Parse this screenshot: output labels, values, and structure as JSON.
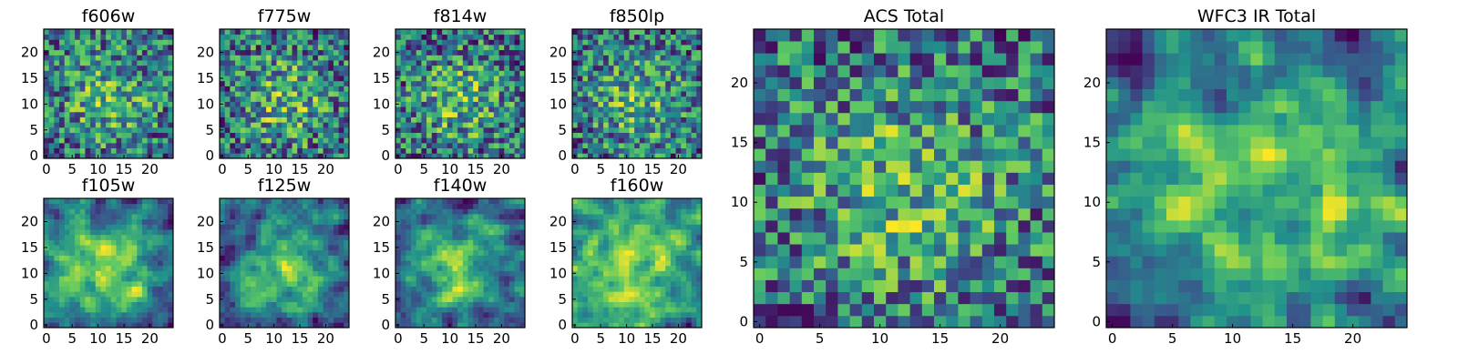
{
  "chart_data": [
    {
      "type": "heatmap",
      "title": "f606w",
      "xlim": [
        0,
        25
      ],
      "ylim": [
        0,
        25
      ],
      "xticks": [
        "0",
        "5",
        "10",
        "15",
        "20"
      ],
      "yticks": [
        "0",
        "5",
        "10",
        "15",
        "20"
      ],
      "seed": 11,
      "smooth": 0,
      "colormap": "viridis"
    },
    {
      "type": "heatmap",
      "title": "f775w",
      "xlim": [
        0,
        25
      ],
      "ylim": [
        0,
        25
      ],
      "xticks": [
        "0",
        "5",
        "10",
        "15",
        "20"
      ],
      "yticks": [
        "0",
        "5",
        "10",
        "15",
        "20"
      ],
      "seed": 23,
      "smooth": 0,
      "colormap": "viridis"
    },
    {
      "type": "heatmap",
      "title": "f814w",
      "xlim": [
        0,
        25
      ],
      "ylim": [
        0,
        25
      ],
      "xticks": [
        "0",
        "5",
        "10",
        "15",
        "20"
      ],
      "yticks": [
        "0",
        "5",
        "10",
        "15",
        "20"
      ],
      "seed": 37,
      "smooth": 0,
      "colormap": "viridis"
    },
    {
      "type": "heatmap",
      "title": "f850lp",
      "xlim": [
        0,
        25
      ],
      "ylim": [
        0,
        25
      ],
      "xticks": [
        "0",
        "5",
        "10",
        "15",
        "20"
      ],
      "yticks": [
        "0",
        "5",
        "10",
        "15",
        "20"
      ],
      "seed": 41,
      "smooth": 0,
      "colormap": "viridis"
    },
    {
      "type": "heatmap",
      "title": "f105w",
      "xlim": [
        0,
        25
      ],
      "ylim": [
        0,
        25
      ],
      "xticks": [
        "0",
        "5",
        "10",
        "15",
        "20"
      ],
      "yticks": [
        "0",
        "5",
        "10",
        "15",
        "20"
      ],
      "seed": 53,
      "smooth": 1,
      "colormap": "viridis"
    },
    {
      "type": "heatmap",
      "title": "f125w",
      "xlim": [
        0,
        25
      ],
      "ylim": [
        0,
        25
      ],
      "xticks": [
        "0",
        "5",
        "10",
        "15",
        "20"
      ],
      "yticks": [
        "0",
        "5",
        "10",
        "15",
        "20"
      ],
      "seed": 67,
      "smooth": 1,
      "colormap": "viridis"
    },
    {
      "type": "heatmap",
      "title": "f140w",
      "xlim": [
        0,
        25
      ],
      "ylim": [
        0,
        25
      ],
      "xticks": [
        "0",
        "5",
        "10",
        "15",
        "20"
      ],
      "yticks": [
        "0",
        "5",
        "10",
        "15",
        "20"
      ],
      "seed": 71,
      "smooth": 1,
      "colormap": "viridis"
    },
    {
      "type": "heatmap",
      "title": "f160w",
      "xlim": [
        0,
        25
      ],
      "ylim": [
        0,
        25
      ],
      "xticks": [
        "0",
        "5",
        "10",
        "15",
        "20"
      ],
      "yticks": [
        "0",
        "5",
        "10",
        "15",
        "20"
      ],
      "seed": 83,
      "smooth": 1,
      "colormap": "viridis"
    },
    {
      "type": "heatmap",
      "title": "ACS Total",
      "xlim": [
        0,
        25
      ],
      "ylim": [
        0,
        25
      ],
      "xticks": [
        "0",
        "5",
        "10",
        "15",
        "20"
      ],
      "yticks": [
        "0",
        "5",
        "10",
        "15",
        "20"
      ],
      "seed": 97,
      "smooth": 0,
      "colormap": "viridis"
    },
    {
      "type": "heatmap",
      "title": "WFC3 IR Total",
      "xlim": [
        0,
        25
      ],
      "ylim": [
        0,
        25
      ],
      "xticks": [
        "0",
        "5",
        "10",
        "15",
        "20"
      ],
      "yticks": [
        "0",
        "5",
        "10",
        "15",
        "20"
      ],
      "seed": 109,
      "smooth": 1,
      "colormap": "viridis"
    }
  ]
}
